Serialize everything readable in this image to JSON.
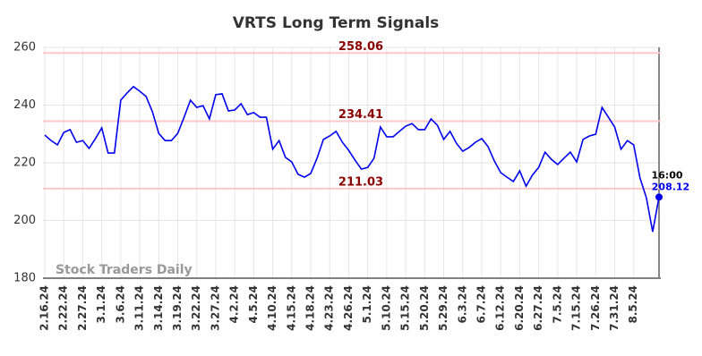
{
  "chart_data": {
    "type": "line",
    "title": "VRTS Long Term Signals",
    "categories": [
      "2.16.24",
      null,
      null,
      "2.22.24",
      null,
      null,
      "2.27.24",
      null,
      null,
      "3.1.24",
      null,
      null,
      "3.6.24",
      null,
      null,
      "3.11.24",
      null,
      null,
      "3.14.24",
      null,
      null,
      "3.19.24",
      null,
      null,
      "3.22.24",
      null,
      null,
      "3.27.24",
      null,
      null,
      "4.2.24",
      null,
      null,
      "4.5.24",
      null,
      null,
      "4.10.24",
      null,
      null,
      "4.15.24",
      null,
      null,
      "4.18.24",
      null,
      null,
      "4.23.24",
      null,
      null,
      "4.26.24",
      null,
      null,
      "5.1.24",
      null,
      null,
      "5.10.24",
      null,
      null,
      "5.15.24",
      null,
      null,
      "5.20.24",
      null,
      null,
      "5.29.24",
      null,
      null,
      "6.3.24",
      null,
      null,
      "6.7.24",
      null,
      null,
      "6.12.24",
      null,
      null,
      "6.20.24",
      null,
      null,
      "6.27.24",
      null,
      null,
      "7.5.24",
      null,
      null,
      "7.15.24",
      null,
      null,
      "7.26.24",
      null,
      null,
      "7.31.24",
      null,
      null,
      "8.5.24",
      null,
      null,
      null,
      null
    ],
    "values": [
      229.6,
      227.7,
      226.2,
      230.5,
      231.5,
      227.1,
      227.7,
      225,
      228.4,
      232.1,
      223.4,
      223.4,
      241.7,
      244.2,
      246.4,
      244.8,
      243,
      237.7,
      230.2,
      227.7,
      227.7,
      230.2,
      235.8,
      241.7,
      239.2,
      239.8,
      235.2,
      243.6,
      243.9,
      238,
      238.3,
      240.5,
      236.7,
      237.4,
      235.8,
      235.8,
      224.7,
      227.7,
      221.9,
      220.3,
      216,
      215,
      216.3,
      221.6,
      228.1,
      229.3,
      230.9,
      227.1,
      224.3,
      220.9,
      217.8,
      218.4,
      221.6,
      232.4,
      229,
      229,
      230.9,
      232.7,
      233.6,
      231.5,
      231.5,
      235.2,
      233,
      228.1,
      230.9,
      226.8,
      224,
      225.3,
      227.1,
      228.4,
      225.6,
      220.6,
      216.6,
      215,
      213.5,
      217.2,
      211.9,
      215.7,
      218.4,
      223.7,
      221.2,
      219.4,
      221.6,
      223.7,
      220.3,
      228.1,
      229.3,
      229.9,
      239.2,
      235.8,
      232.4,
      224.7,
      227.7,
      226.2,
      214.7,
      207.9,
      196.1,
      208.12
    ],
    "color": "#0000ee",
    "reference_lines": [
      258.06,
      234.41,
      211.03
    ],
    "reference_color": "#ffc8c8",
    "reference_label_color": "#8b0000",
    "last_time": "16:00",
    "watermark": "Stock Traders Daily",
    "ylim": [
      180,
      260
    ],
    "yticks": [
      180,
      200,
      220,
      240,
      260
    ],
    "grid": true
  }
}
